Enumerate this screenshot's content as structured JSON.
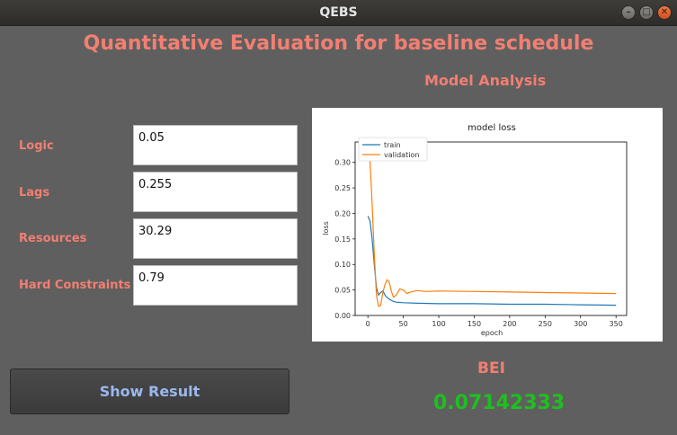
{
  "window": {
    "title": "QEBS",
    "buttons": [
      "minimize",
      "maximize",
      "close"
    ]
  },
  "header": {
    "title": "Quantitative Evaluation for baseline schedule"
  },
  "model": {
    "title": "Model Analysis"
  },
  "fields": [
    {
      "label": "Logic",
      "value": "0.05"
    },
    {
      "label": "Lags",
      "value": "0.255"
    },
    {
      "label": "Resources",
      "value": "30.29"
    },
    {
      "label": "Hard Constraints",
      "value": "0.79"
    }
  ],
  "actions": {
    "show_result": "Show Result"
  },
  "result": {
    "label": "BEI",
    "value": "0.07142333"
  },
  "colors": {
    "accent": "#f27f72",
    "value": "#1fbf1f",
    "button_text": "#9bb8ee",
    "train": "#1f77b4",
    "validation": "#ff7f0e"
  },
  "chart_data": {
    "type": "line",
    "title": "model loss",
    "xlabel": "epoch",
    "ylabel": "loss",
    "xlim": [
      -18,
      365
    ],
    "ylim": [
      0,
      0.34
    ],
    "xticks": [
      0,
      50,
      100,
      150,
      200,
      250,
      300,
      350
    ],
    "yticks": [
      0.0,
      0.05,
      0.1,
      0.15,
      0.2,
      0.25,
      0.3
    ],
    "ytick_labels": [
      "0.00",
      "0.05",
      "0.10",
      "0.15",
      "0.20",
      "0.25",
      "0.30"
    ],
    "legend": "top-left",
    "grid": false,
    "series": [
      {
        "name": "train",
        "color": "#1f77b4",
        "points": [
          [
            0,
            0.195
          ],
          [
            3,
            0.185
          ],
          [
            6,
            0.15
          ],
          [
            9,
            0.1
          ],
          [
            12,
            0.055
          ],
          [
            15,
            0.04
          ],
          [
            18,
            0.045
          ],
          [
            21,
            0.048
          ],
          [
            25,
            0.038
          ],
          [
            30,
            0.032
          ],
          [
            35,
            0.028
          ],
          [
            40,
            0.026
          ],
          [
            50,
            0.025
          ],
          [
            70,
            0.024
          ],
          [
            100,
            0.023
          ],
          [
            150,
            0.023
          ],
          [
            200,
            0.022
          ],
          [
            250,
            0.022
          ],
          [
            300,
            0.021
          ],
          [
            350,
            0.02
          ]
        ]
      },
      {
        "name": "validation",
        "color": "#ff7f0e",
        "points": [
          [
            0,
            0.33
          ],
          [
            3,
            0.3
          ],
          [
            6,
            0.22
          ],
          [
            9,
            0.12
          ],
          [
            12,
            0.04
          ],
          [
            15,
            0.018
          ],
          [
            18,
            0.02
          ],
          [
            21,
            0.045
          ],
          [
            24,
            0.06
          ],
          [
            27,
            0.07
          ],
          [
            30,
            0.066
          ],
          [
            33,
            0.048
          ],
          [
            36,
            0.036
          ],
          [
            40,
            0.04
          ],
          [
            45,
            0.052
          ],
          [
            50,
            0.05
          ],
          [
            55,
            0.043
          ],
          [
            60,
            0.046
          ],
          [
            70,
            0.049
          ],
          [
            80,
            0.047
          ],
          [
            100,
            0.048
          ],
          [
            150,
            0.047
          ],
          [
            200,
            0.046
          ],
          [
            250,
            0.045
          ],
          [
            300,
            0.044
          ],
          [
            350,
            0.043
          ]
        ]
      }
    ]
  }
}
